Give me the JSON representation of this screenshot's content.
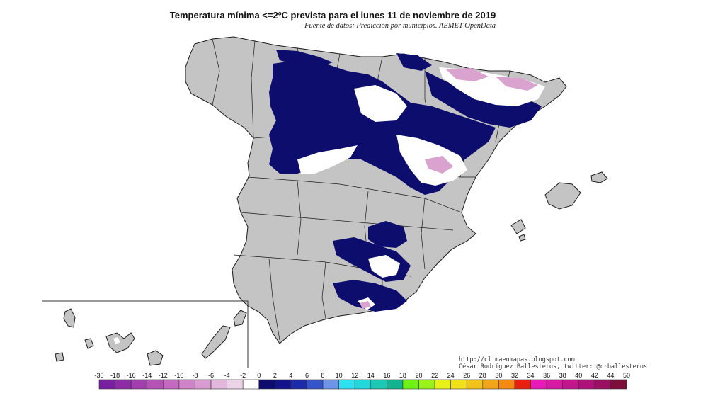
{
  "title": "Temperatura mínima <=2ºC prevista para el lunes 11 de noviembre de 2019",
  "subtitle": "Fuente de datos: Predicción por municipios. AEMET OpenData",
  "credits": {
    "url": "http://climaenmapas.blogspot.com",
    "author": "César Rodríguez Ballesteros, twitter: @crballesteros"
  },
  "legend": {
    "ticks": [
      "-30",
      "-18",
      "-16",
      "-14",
      "-12",
      "-10",
      "-8",
      "-6",
      "-4",
      "-2",
      "0",
      "2",
      "4",
      "6",
      "8",
      "10",
      "12",
      "14",
      "16",
      "18",
      "20",
      "22",
      "24",
      "26",
      "28",
      "30",
      "32",
      "34",
      "36",
      "38",
      "40",
      "42",
      "44",
      "50"
    ],
    "colors": [
      "#7b1fa2",
      "#8e2ca8",
      "#a23eb0",
      "#b452b6",
      "#c469bf",
      "#cf82c8",
      "#d99bd1",
      "#e3b6dc",
      "#edd3e8",
      "#ffffff",
      "#0c0c6e",
      "#13138a",
      "#1c2ba8",
      "#3655c8",
      "#6e93e8",
      "#2fe0f2",
      "#22d6da",
      "#1fc7b5",
      "#14b28f",
      "#6ef216",
      "#9af21a",
      "#e8f218",
      "#f2e01a",
      "#f2c21a",
      "#f2a51a",
      "#f28a14",
      "#e8200e",
      "#e81ab9",
      "#d61aa3",
      "#c2168f",
      "#ae127a",
      "#991063",
      "#7d0e3a"
    ]
  },
  "map": {
    "background_color": "#c4c4c4",
    "cold_color": "#0d0d6e",
    "frost_color": "#ffffff",
    "severe_frost_color": "#d9a2cf",
    "border_color": "#1a1a1a"
  }
}
